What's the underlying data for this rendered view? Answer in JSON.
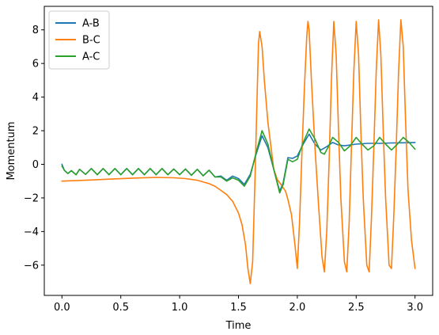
{
  "chart_data": {
    "type": "line",
    "title": "",
    "xlabel": "Time",
    "ylabel": "Momentum",
    "xlim": [
      -0.15,
      3.15
    ],
    "ylim": [
      -7.8,
      9.4
    ],
    "xticks": [
      0.0,
      0.5,
      1.0,
      1.5,
      2.0,
      2.5,
      3.0
    ],
    "xtick_labels": [
      "0.0",
      "0.5",
      "1.0",
      "1.5",
      "2.0",
      "2.5",
      "3.0"
    ],
    "yticks": [
      -6,
      -4,
      -2,
      0,
      2,
      4,
      6,
      8
    ],
    "ytick_labels": [
      "−6",
      "−4",
      "−2",
      "0",
      "2",
      "4",
      "6",
      "8"
    ],
    "grid": false,
    "legend_position": "top-left",
    "series": [
      {
        "name": "A-B",
        "color": "#1f77b4",
        "points": [
          [
            0.0,
            0.0
          ],
          [
            0.02,
            -0.35
          ],
          [
            0.05,
            -0.55
          ],
          [
            0.08,
            -0.38
          ],
          [
            0.12,
            -0.62
          ],
          [
            0.15,
            -0.3
          ],
          [
            0.2,
            -0.6
          ],
          [
            0.25,
            -0.25
          ],
          [
            0.3,
            -0.62
          ],
          [
            0.35,
            -0.25
          ],
          [
            0.4,
            -0.62
          ],
          [
            0.45,
            -0.25
          ],
          [
            0.5,
            -0.62
          ],
          [
            0.55,
            -0.25
          ],
          [
            0.6,
            -0.62
          ],
          [
            0.65,
            -0.25
          ],
          [
            0.7,
            -0.62
          ],
          [
            0.75,
            -0.25
          ],
          [
            0.8,
            -0.62
          ],
          [
            0.85,
            -0.25
          ],
          [
            0.9,
            -0.62
          ],
          [
            0.95,
            -0.28
          ],
          [
            1.0,
            -0.62
          ],
          [
            1.05,
            -0.28
          ],
          [
            1.1,
            -0.65
          ],
          [
            1.15,
            -0.3
          ],
          [
            1.2,
            -0.68
          ],
          [
            1.25,
            -0.35
          ],
          [
            1.3,
            -0.75
          ],
          [
            1.35,
            -0.7
          ],
          [
            1.4,
            -0.95
          ],
          [
            1.45,
            -0.7
          ],
          [
            1.5,
            -0.85
          ],
          [
            1.55,
            -1.2
          ],
          [
            1.6,
            -0.6
          ],
          [
            1.65,
            0.6
          ],
          [
            1.7,
            1.7
          ],
          [
            1.75,
            1.0
          ],
          [
            1.8,
            -0.3
          ],
          [
            1.85,
            -1.6
          ],
          [
            1.88,
            -1.1
          ],
          [
            1.92,
            0.4
          ],
          [
            1.96,
            0.35
          ],
          [
            2.0,
            0.5
          ],
          [
            2.05,
            1.2
          ],
          [
            2.1,
            1.8
          ],
          [
            2.15,
            1.2
          ],
          [
            2.2,
            0.85
          ],
          [
            2.25,
            1.05
          ],
          [
            2.3,
            1.3
          ],
          [
            2.35,
            1.15
          ],
          [
            2.4,
            1.1
          ],
          [
            2.5,
            1.2
          ],
          [
            2.6,
            1.25
          ],
          [
            2.7,
            1.25
          ],
          [
            2.8,
            1.27
          ],
          [
            2.9,
            1.28
          ],
          [
            3.0,
            1.3
          ]
        ]
      },
      {
        "name": "B-C",
        "color": "#ff7f0e",
        "points": [
          [
            0.0,
            -1.0
          ],
          [
            0.2,
            -0.95
          ],
          [
            0.4,
            -0.88
          ],
          [
            0.6,
            -0.82
          ],
          [
            0.8,
            -0.78
          ],
          [
            0.95,
            -0.8
          ],
          [
            1.05,
            -0.85
          ],
          [
            1.15,
            -0.95
          ],
          [
            1.25,
            -1.15
          ],
          [
            1.3,
            -1.3
          ],
          [
            1.35,
            -1.55
          ],
          [
            1.4,
            -1.8
          ],
          [
            1.45,
            -2.2
          ],
          [
            1.5,
            -2.9
          ],
          [
            1.53,
            -3.6
          ],
          [
            1.56,
            -4.8
          ],
          [
            1.58,
            -6.2
          ],
          [
            1.6,
            -7.1
          ],
          [
            1.62,
            -5.8
          ],
          [
            1.64,
            -1.0
          ],
          [
            1.66,
            4.5
          ],
          [
            1.67,
            7.2
          ],
          [
            1.68,
            7.9
          ],
          [
            1.7,
            7.0
          ],
          [
            1.72,
            5.0
          ],
          [
            1.75,
            2.5
          ],
          [
            1.78,
            0.8
          ],
          [
            1.8,
            -0.3
          ],
          [
            1.83,
            -0.9
          ],
          [
            1.86,
            -1.2
          ],
          [
            1.9,
            -1.6
          ],
          [
            1.92,
            -2.1
          ],
          [
            1.95,
            -3.0
          ],
          [
            1.98,
            -4.8
          ],
          [
            2.0,
            -6.2
          ],
          [
            2.02,
            -3.2
          ],
          [
            2.04,
            0.8
          ],
          [
            2.06,
            4.5
          ],
          [
            2.08,
            7.6
          ],
          [
            2.09,
            8.5
          ],
          [
            2.1,
            8.0
          ],
          [
            2.12,
            5.0
          ],
          [
            2.15,
            1.0
          ],
          [
            2.18,
            -2.4
          ],
          [
            2.21,
            -5.5
          ],
          [
            2.23,
            -6.4
          ],
          [
            2.25,
            -4.0
          ],
          [
            2.27,
            0.2
          ],
          [
            2.29,
            5.0
          ],
          [
            2.31,
            8.5
          ],
          [
            2.33,
            6.5
          ],
          [
            2.35,
            2.0
          ],
          [
            2.37,
            -2.0
          ],
          [
            2.4,
            -5.8
          ],
          [
            2.42,
            -6.4
          ],
          [
            2.44,
            -3.5
          ],
          [
            2.46,
            1.0
          ],
          [
            2.48,
            5.5
          ],
          [
            2.5,
            8.5
          ],
          [
            2.52,
            6.5
          ],
          [
            2.54,
            2.0
          ],
          [
            2.56,
            -2.0
          ],
          [
            2.59,
            -6.0
          ],
          [
            2.61,
            -6.4
          ],
          [
            2.63,
            -3.2
          ],
          [
            2.65,
            1.0
          ],
          [
            2.67,
            5.5
          ],
          [
            2.69,
            8.6
          ],
          [
            2.71,
            6.5
          ],
          [
            2.73,
            2.0
          ],
          [
            2.75,
            -2.0
          ],
          [
            2.78,
            -6.0
          ],
          [
            2.8,
            -6.2
          ],
          [
            2.82,
            -3.0
          ],
          [
            2.84,
            1.0
          ],
          [
            2.86,
            5.5
          ],
          [
            2.88,
            8.6
          ],
          [
            2.9,
            7.0
          ],
          [
            2.92,
            2.5
          ],
          [
            2.94,
            -1.5
          ],
          [
            2.97,
            -4.5
          ],
          [
            3.0,
            -6.2
          ]
        ]
      },
      {
        "name": "A-C",
        "color": "#2ca02c",
        "points": [
          [
            0.0,
            -0.1
          ],
          [
            0.02,
            -0.35
          ],
          [
            0.05,
            -0.55
          ],
          [
            0.08,
            -0.38
          ],
          [
            0.12,
            -0.62
          ],
          [
            0.15,
            -0.3
          ],
          [
            0.2,
            -0.6
          ],
          [
            0.25,
            -0.25
          ],
          [
            0.3,
            -0.62
          ],
          [
            0.35,
            -0.25
          ],
          [
            0.4,
            -0.62
          ],
          [
            0.45,
            -0.25
          ],
          [
            0.5,
            -0.62
          ],
          [
            0.55,
            -0.25
          ],
          [
            0.6,
            -0.62
          ],
          [
            0.65,
            -0.25
          ],
          [
            0.7,
            -0.62
          ],
          [
            0.75,
            -0.25
          ],
          [
            0.8,
            -0.62
          ],
          [
            0.85,
            -0.25
          ],
          [
            0.9,
            -0.62
          ],
          [
            0.95,
            -0.28
          ],
          [
            1.0,
            -0.62
          ],
          [
            1.05,
            -0.28
          ],
          [
            1.1,
            -0.65
          ],
          [
            1.15,
            -0.3
          ],
          [
            1.2,
            -0.68
          ],
          [
            1.25,
            -0.35
          ],
          [
            1.3,
            -0.75
          ],
          [
            1.35,
            -0.75
          ],
          [
            1.4,
            -1.0
          ],
          [
            1.45,
            -0.8
          ],
          [
            1.5,
            -0.95
          ],
          [
            1.55,
            -1.3
          ],
          [
            1.6,
            -0.7
          ],
          [
            1.65,
            0.7
          ],
          [
            1.7,
            2.0
          ],
          [
            1.75,
            1.2
          ],
          [
            1.8,
            -0.3
          ],
          [
            1.85,
            -1.7
          ],
          [
            1.88,
            -1.2
          ],
          [
            1.92,
            0.3
          ],
          [
            1.96,
            0.15
          ],
          [
            2.0,
            0.3
          ],
          [
            2.05,
            1.3
          ],
          [
            2.1,
            2.1
          ],
          [
            2.15,
            1.5
          ],
          [
            2.2,
            0.7
          ],
          [
            2.23,
            0.6
          ],
          [
            2.26,
            1.0
          ],
          [
            2.3,
            1.6
          ],
          [
            2.35,
            1.3
          ],
          [
            2.4,
            0.8
          ],
          [
            2.45,
            1.1
          ],
          [
            2.5,
            1.6
          ],
          [
            2.55,
            1.2
          ],
          [
            2.6,
            0.85
          ],
          [
            2.65,
            1.1
          ],
          [
            2.7,
            1.6
          ],
          [
            2.75,
            1.2
          ],
          [
            2.8,
            0.85
          ],
          [
            2.85,
            1.2
          ],
          [
            2.9,
            1.6
          ],
          [
            2.95,
            1.3
          ],
          [
            3.0,
            0.9
          ]
        ]
      }
    ]
  }
}
